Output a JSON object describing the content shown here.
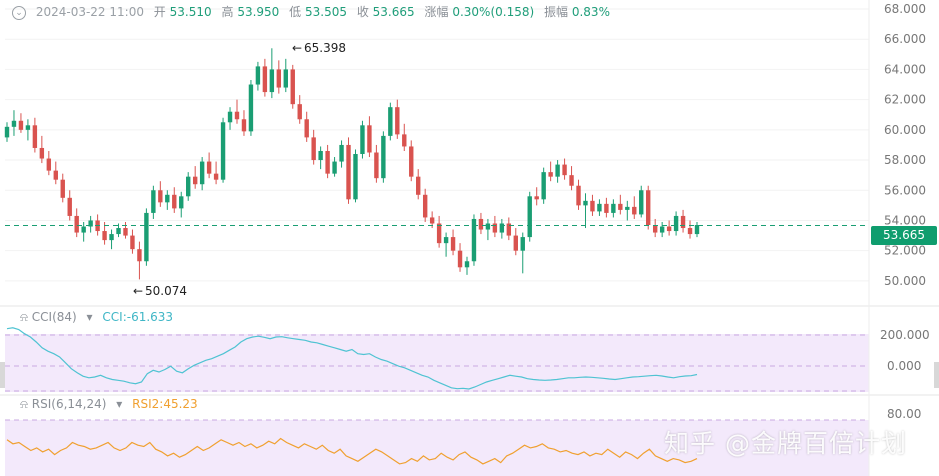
{
  "header": {
    "datetime": "2024-03-22 11:00",
    "open_label": "开",
    "open": "53.510",
    "high_label": "高",
    "high": "53.950",
    "low_label": "低",
    "low": "53.505",
    "close_label": "收",
    "close": "53.665",
    "change_label": "涨幅",
    "change": "0.30%(0.158)",
    "amp_label": "振幅",
    "amp": "0.83%"
  },
  "current_price": "53.665",
  "annotations": {
    "max": "65.398",
    "min": "50.074"
  },
  "cci": {
    "title": "CCI(84)",
    "value_text": "CCI:-61.633",
    "ticks": [
      "200.000",
      "0.000"
    ]
  },
  "rsi": {
    "title": "RSI(6,14,24)",
    "value_text": "RSI2:45.23",
    "ticks": [
      "80.00"
    ]
  },
  "watermark": "知乎 @金牌百倍计划",
  "colors": {
    "up": "#1a9e73",
    "down": "#d9534f",
    "cci_line": "#4fc3d2",
    "rsi_line": "#f0a030",
    "band": "#f3e9fb"
  },
  "chart_data": [
    {
      "type": "candlestick",
      "title": "",
      "ylim": [
        49,
        68
      ],
      "y_ticks": [
        "68.000",
        "66.000",
        "64.000",
        "62.000",
        "60.000",
        "58.000",
        "56.000",
        "54.000",
        "52.000",
        "50.000"
      ],
      "last_price": 53.665,
      "series": [
        {
          "values": [
            [
              59.5,
              60.5,
              59.2,
              60.2
            ],
            [
              60.2,
              61.3,
              59.6,
              60.6
            ],
            [
              60.6,
              61.1,
              59.8,
              60.0
            ],
            [
              60.0,
              60.7,
              59.3,
              60.3
            ],
            [
              60.3,
              60.8,
              58.5,
              58.8
            ],
            [
              58.8,
              59.6,
              57.8,
              58.1
            ],
            [
              58.1,
              58.6,
              57.0,
              57.3
            ],
            [
              57.3,
              57.9,
              56.4,
              56.7
            ],
            [
              56.7,
              57.1,
              55.2,
              55.5
            ],
            [
              55.5,
              56.0,
              54.0,
              54.3
            ],
            [
              54.3,
              54.8,
              52.9,
              53.2
            ],
            [
              53.2,
              53.9,
              52.6,
              53.6
            ],
            [
              53.6,
              54.3,
              53.2,
              54.0
            ],
            [
              54.0,
              54.4,
              53.0,
              53.3
            ],
            [
              53.3,
              53.9,
              52.4,
              52.7
            ],
            [
              52.7,
              53.4,
              52.1,
              53.1
            ],
            [
              53.1,
              53.8,
              52.9,
              53.5
            ],
            [
              53.5,
              53.9,
              52.8,
              53.0
            ],
            [
              53.0,
              53.4,
              51.8,
              52.1
            ],
            [
              52.1,
              52.6,
              50.1,
              51.3
            ],
            [
              51.3,
              54.8,
              51.0,
              54.5
            ],
            [
              54.5,
              56.3,
              54.1,
              56.0
            ],
            [
              56.0,
              56.6,
              54.9,
              55.2
            ],
            [
              55.2,
              56.0,
              54.7,
              55.7
            ],
            [
              55.7,
              56.2,
              54.5,
              54.8
            ],
            [
              54.8,
              55.9,
              54.2,
              55.6
            ],
            [
              55.6,
              57.2,
              55.3,
              56.9
            ],
            [
              56.9,
              57.6,
              56.1,
              56.4
            ],
            [
              56.4,
              58.2,
              56.0,
              57.9
            ],
            [
              57.9,
              58.5,
              56.8,
              57.1
            ],
            [
              57.1,
              57.9,
              56.4,
              56.7
            ],
            [
              56.7,
              60.8,
              56.5,
              60.5
            ],
            [
              60.5,
              61.5,
              60.0,
              61.2
            ],
            [
              61.2,
              62.0,
              60.4,
              60.7
            ],
            [
              60.7,
              61.3,
              59.6,
              59.9
            ],
            [
              59.9,
              63.3,
              59.6,
              63.0
            ],
            [
              63.0,
              64.5,
              62.6,
              64.2
            ],
            [
              64.2,
              64.7,
              62.2,
              62.5
            ],
            [
              62.5,
              65.4,
              62.1,
              64.0
            ],
            [
              64.0,
              64.6,
              62.4,
              62.8
            ],
            [
              62.8,
              64.7,
              62.5,
              64.0
            ],
            [
              64.0,
              64.3,
              61.4,
              61.7
            ],
            [
              61.7,
              62.3,
              60.4,
              60.7
            ],
            [
              60.7,
              61.2,
              59.2,
              59.5
            ],
            [
              59.5,
              60.0,
              57.7,
              58.0
            ],
            [
              58.0,
              58.9,
              57.4,
              58.6
            ],
            [
              58.6,
              59.0,
              56.8,
              57.1
            ],
            [
              57.1,
              58.2,
              56.9,
              57.9
            ],
            [
              57.9,
              59.3,
              57.5,
              59.0
            ],
            [
              59.0,
              59.5,
              55.1,
              55.4
            ],
            [
              55.4,
              58.7,
              55.2,
              58.4
            ],
            [
              58.4,
              60.6,
              58.1,
              60.3
            ],
            [
              60.3,
              60.9,
              58.2,
              58.5
            ],
            [
              58.5,
              59.0,
              56.5,
              56.8
            ],
            [
              56.8,
              59.9,
              56.5,
              59.6
            ],
            [
              59.6,
              61.8,
              59.3,
              61.5
            ],
            [
              61.5,
              62.0,
              59.4,
              59.7
            ],
            [
              59.7,
              60.4,
              58.6,
              58.9
            ],
            [
              58.9,
              59.3,
              56.6,
              56.9
            ],
            [
              56.9,
              57.4,
              55.4,
              55.7
            ],
            [
              55.7,
              56.1,
              53.9,
              54.2
            ],
            [
              54.2,
              54.6,
              53.5,
              53.8
            ],
            [
              53.8,
              54.3,
              52.2,
              52.5
            ],
            [
              52.5,
              53.2,
              51.6,
              52.9
            ],
            [
              52.9,
              53.4,
              51.7,
              52.0
            ],
            [
              52.0,
              52.5,
              50.6,
              50.9
            ],
            [
              50.9,
              51.6,
              50.4,
              51.3
            ],
            [
              51.3,
              54.4,
              51.0,
              54.1
            ],
            [
              54.1,
              54.5,
              53.1,
              53.4
            ],
            [
              53.4,
              54.1,
              52.7,
              53.8
            ],
            [
              53.8,
              54.3,
              52.9,
              53.2
            ],
            [
              53.2,
              54.1,
              52.8,
              53.8
            ],
            [
              53.8,
              54.2,
              52.7,
              53.0
            ],
            [
              53.0,
              53.5,
              51.7,
              52.0
            ],
            [
              52.0,
              53.2,
              50.5,
              52.9
            ],
            [
              52.9,
              55.9,
              52.6,
              55.6
            ],
            [
              55.6,
              56.2,
              55.0,
              55.4
            ],
            [
              55.4,
              57.5,
              55.1,
              57.2
            ],
            [
              57.2,
              57.9,
              56.6,
              56.9
            ],
            [
              56.9,
              58.0,
              56.5,
              57.7
            ],
            [
              57.7,
              58.1,
              56.7,
              57.0
            ],
            [
              57.0,
              57.6,
              56.0,
              56.3
            ],
            [
              56.3,
              56.7,
              54.7,
              55.0
            ],
            [
              55.0,
              55.8,
              53.5,
              55.3
            ],
            [
              55.3,
              55.7,
              54.3,
              54.6
            ],
            [
              54.6,
              55.4,
              54.3,
              55.1
            ],
            [
              55.1,
              55.5,
              54.2,
              54.5
            ],
            [
              54.5,
              55.4,
              54.2,
              55.1
            ],
            [
              55.1,
              55.7,
              54.4,
              54.7
            ],
            [
              54.7,
              55.3,
              54.0,
              54.9
            ],
            [
              54.9,
              55.6,
              54.1,
              54.4
            ],
            [
              54.4,
              56.3,
              54.2,
              56.0
            ],
            [
              56.0,
              56.3,
              53.4,
              53.7
            ],
            [
              53.7,
              54.1,
              52.9,
              53.2
            ],
            [
              53.2,
              53.9,
              52.9,
              53.6
            ],
            [
              53.6,
              54.0,
              53.0,
              53.3
            ],
            [
              53.3,
              54.6,
              53.0,
              54.3
            ],
            [
              54.3,
              54.7,
              53.2,
              53.5
            ],
            [
              53.5,
              54.0,
              52.8,
              53.1
            ],
            [
              53.1,
              53.9,
              52.9,
              53.7
            ]
          ]
        }
      ]
    },
    {
      "type": "line",
      "title": "CCI(84)",
      "ylim": [
        -170,
        220
      ],
      "series": [
        {
          "name": "CCI",
          "values": [
            210,
            215,
            205,
            180,
            160,
            130,
            95,
            75,
            60,
            40,
            5,
            -30,
            -55,
            -75,
            -85,
            -80,
            -70,
            -85,
            -95,
            -100,
            -105,
            -115,
            -120,
            -110,
            -60,
            -40,
            -50,
            -35,
            -15,
            -45,
            -55,
            -30,
            -10,
            5,
            20,
            30,
            45,
            60,
            80,
            100,
            130,
            150,
            160,
            165,
            158,
            150,
            160,
            162,
            155,
            150,
            145,
            140,
            130,
            125,
            115,
            105,
            95,
            85,
            75,
            85,
            60,
            55,
            60,
            40,
            25,
            15,
            0,
            -15,
            -25,
            -40,
            -55,
            -70,
            -80,
            -100,
            -115,
            -130,
            -145,
            -150,
            -148,
            -152,
            -140,
            -125,
            -110,
            -100,
            -90,
            -80,
            -70,
            -75,
            -80,
            -90,
            -95,
            -98,
            -100,
            -98,
            -95,
            -90,
            -85,
            -85,
            -82,
            -80,
            -82,
            -85,
            -88,
            -92,
            -95,
            -90,
            -85,
            -80,
            -78,
            -75,
            -72,
            -70,
            -74,
            -80,
            -85,
            -78,
            -74,
            -72,
            -65
          ]
        }
      ]
    },
    {
      "type": "line",
      "title": "RSI(6,14,24)",
      "ylim": [
        35,
        85
      ],
      "series": [
        {
          "name": "RSI2",
          "values": [
            62,
            59,
            60,
            57,
            54,
            56,
            53,
            55,
            51,
            54,
            56,
            60,
            58,
            57,
            55,
            56,
            58,
            60,
            56,
            54,
            56,
            60,
            58,
            57,
            60,
            55,
            53,
            50,
            52,
            49,
            51,
            54,
            57,
            54,
            56,
            59,
            62,
            60,
            58,
            60,
            57,
            59,
            56,
            58,
            61,
            59,
            63,
            60,
            58,
            56,
            59,
            57,
            55,
            58,
            54,
            52,
            55,
            50,
            48,
            46,
            49,
            52,
            55,
            53,
            50,
            47,
            44,
            45,
            48,
            46,
            50,
            47,
            48,
            52,
            49,
            47,
            51,
            53,
            49,
            47,
            44,
            46,
            48,
            45,
            50,
            52,
            55,
            58,
            56,
            57,
            59,
            56,
            55,
            53,
            54,
            52,
            51,
            53,
            50,
            52,
            51,
            55,
            52,
            49,
            53,
            51,
            48,
            52,
            55,
            50,
            48,
            46,
            48,
            47,
            45,
            46,
            48
          ]
        }
      ]
    }
  ]
}
